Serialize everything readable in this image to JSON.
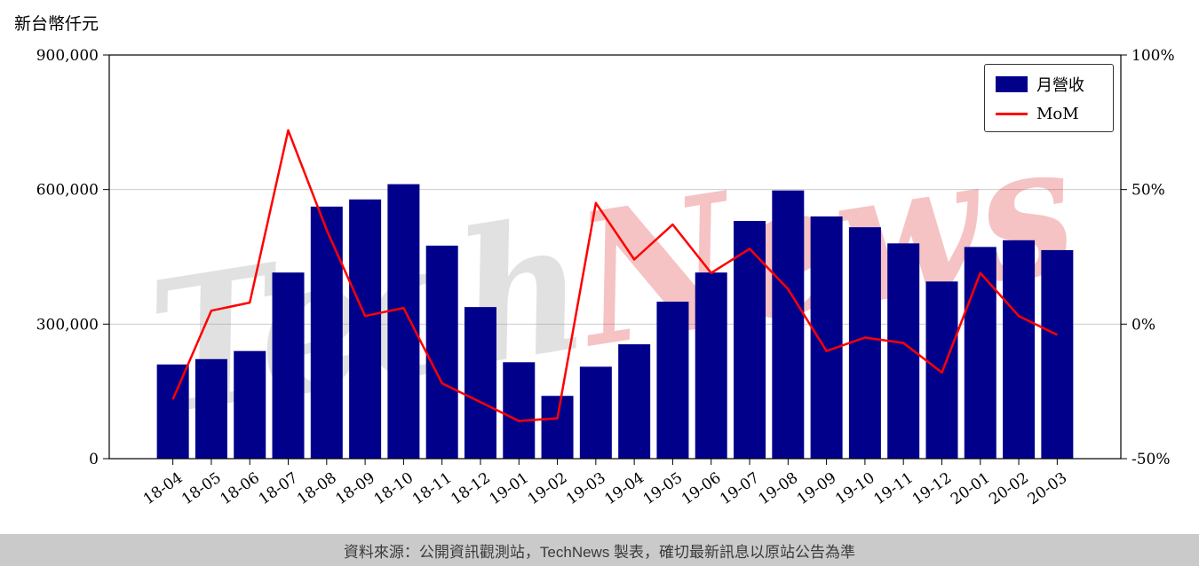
{
  "title": "新台幣仟元",
  "legend": {
    "bar_label": "月營收",
    "line_label": "MoM"
  },
  "watermark": {
    "part1": "Tech",
    "part2": "News"
  },
  "footer": "資料來源：公開資訊觀測站，TechNews 製表，確切最新訊息以原站公告為準",
  "colors": {
    "bar": "#00008B",
    "line": "#ff0000",
    "grid": "#cccccc",
    "axis": "#000000",
    "watermark_gray": "#9e9e9e",
    "watermark_red": "#e03c3c",
    "footer_bg": "#cacaca"
  },
  "chart_data": {
    "type": "bar+line",
    "title": "新台幣仟元",
    "categories": [
      "18-04",
      "18-05",
      "18-06",
      "18-07",
      "18-08",
      "18-09",
      "18-10",
      "18-11",
      "18-12",
      "19-01",
      "19-02",
      "19-03",
      "19-04",
      "19-05",
      "19-06",
      "19-07",
      "19-08",
      "19-09",
      "19-10",
      "19-11",
      "19-12",
      "20-01",
      "20-02",
      "20-03"
    ],
    "series": [
      {
        "name": "月營收",
        "type": "bar",
        "axis": "left",
        "unit": "新台幣仟元",
        "values": [
          210000,
          222000,
          240000,
          415000,
          562000,
          578000,
          612000,
          475000,
          338000,
          215000,
          140000,
          205000,
          255000,
          350000,
          415000,
          530000,
          598000,
          540000,
          516000,
          480000,
          395000,
          472000,
          487000,
          465000
        ]
      },
      {
        "name": "MoM",
        "type": "line",
        "axis": "right",
        "unit": "%",
        "values": [
          -28,
          5,
          8,
          72,
          35,
          3,
          6,
          -22,
          -29,
          -36,
          -35,
          45,
          24,
          37,
          19,
          28,
          13,
          -10,
          -5,
          -7,
          -18,
          19,
          3,
          -4
        ]
      }
    ],
    "left_axis": {
      "min": 0,
      "max": 900000,
      "ticks": [
        {
          "label": "0",
          "value": 0
        },
        {
          "label": "300,000",
          "value": 300000
        },
        {
          "label": "600,000",
          "value": 600000
        },
        {
          "label": "900,000",
          "value": 900000
        }
      ],
      "gridlines": [
        300000,
        600000
      ]
    },
    "right_axis": {
      "min": -50,
      "max": 100,
      "ticks": [
        {
          "label": "-50%",
          "value": -50
        },
        {
          "label": "0%",
          "value": 0
        },
        {
          "label": "50%",
          "value": 50
        },
        {
          "label": "100%",
          "value": 100
        }
      ]
    },
    "legend_position": "upper-right",
    "grid": true
  }
}
